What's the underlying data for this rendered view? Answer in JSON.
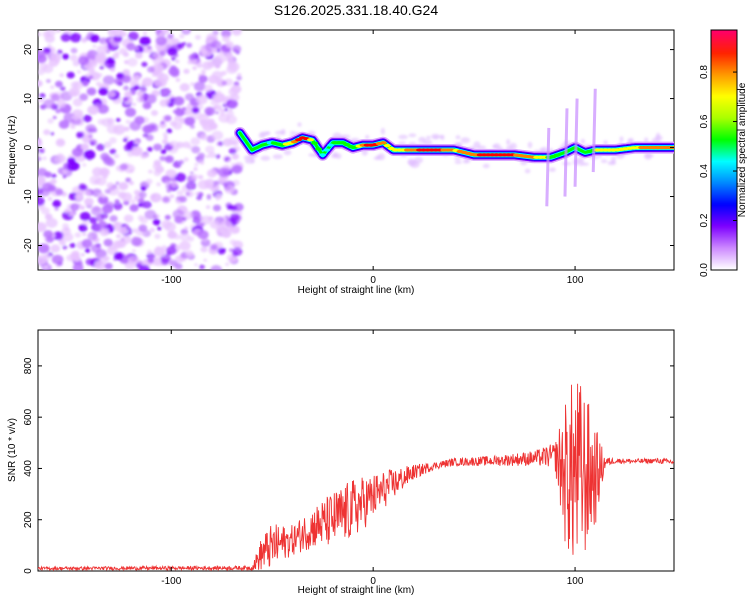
{
  "title": "S126.2025.331.18.40.G24",
  "chart_data": [
    {
      "type": "heatmap",
      "name": "spectrogram",
      "xlabel": "Height of straight line (km)",
      "ylabel": "Frequency (Hz)",
      "xlim": [
        -166,
        149
      ],
      "ylim": [
        -25,
        24
      ],
      "xticks": [
        -100,
        0,
        100
      ],
      "yticks": [
        -20,
        -10,
        0,
        10,
        20
      ],
      "colorbar": {
        "label": "Normalized spectral amplitude",
        "range": [
          0,
          0.97
        ],
        "ticks": [
          0.0,
          0.2,
          0.4,
          0.6,
          0.8
        ],
        "tick_labels": [
          "0.0",
          "0.2",
          "0.4",
          "0.6",
          "0.8"
        ],
        "colors": [
          "#ffffff",
          "#e4b7ff",
          "#7d00ff",
          "#0000ff",
          "#00ffff",
          "#00ff00",
          "#ffff00",
          "#ff8000",
          "#ff0000",
          "#ff0080"
        ]
      },
      "ridge": {
        "x": [
          -66,
          -60,
          -55,
          -50,
          -45,
          -40,
          -35,
          -30,
          -25,
          -20,
          -15,
          -10,
          -5,
          0,
          5,
          10,
          20,
          30,
          40,
          50,
          60,
          70,
          80,
          88,
          95,
          100,
          105,
          110,
          120,
          130,
          140,
          149
        ],
        "freq": [
          3.0,
          -0.5,
          0.5,
          1.0,
          0.5,
          1.0,
          2.0,
          1.5,
          -1.5,
          1.0,
          1.0,
          0.0,
          0.5,
          0.5,
          1.0,
          -0.5,
          -0.5,
          -0.5,
          -0.5,
          -1.5,
          -1.5,
          -1.5,
          -2.0,
          -2.0,
          -1.0,
          0.0,
          -1.0,
          -0.5,
          -0.5,
          0.0,
          0.0,
          0.0
        ],
        "amplitude": [
          0.4,
          0.35,
          0.4,
          0.5,
          0.55,
          0.8,
          0.9,
          0.55,
          0.45,
          0.5,
          0.5,
          0.55,
          0.8,
          0.85,
          0.7,
          0.6,
          0.8,
          0.85,
          0.7,
          0.8,
          0.85,
          0.8,
          0.7,
          0.55,
          0.35,
          0.3,
          0.45,
          0.65,
          0.65,
          0.7,
          0.75,
          0.7
        ]
      },
      "noise_region_x": [
        -166,
        -70
      ]
    },
    {
      "type": "line",
      "name": "snr",
      "xlabel": "Height of straight line (km)",
      "ylabel": "SNR (10 * v/v)",
      "xlim": [
        -166,
        149
      ],
      "ylim": [
        0,
        940
      ],
      "xticks": [
        -100,
        0,
        100
      ],
      "yticks": [
        0,
        200,
        400,
        600,
        800
      ],
      "color": "#ee3333",
      "envelope": {
        "x": [
          -166,
          -60,
          -55,
          -50,
          -45,
          -40,
          -30,
          -20,
          -10,
          0,
          10,
          20,
          30,
          40,
          60,
          80,
          90,
          95,
          100,
          105,
          110,
          115,
          120,
          130,
          140,
          149
        ],
        "mean": [
          10,
          12,
          70,
          95,
          110,
          120,
          170,
          200,
          240,
          290,
          340,
          385,
          410,
          425,
          430,
          440,
          450,
          380,
          380,
          380,
          370,
          425,
          430,
          428,
          430,
          425
        ],
        "spread": [
          6,
          8,
          70,
          90,
          70,
          60,
          80,
          110,
          120,
          90,
          60,
          30,
          15,
          15,
          20,
          30,
          50,
          280,
          400,
          330,
          200,
          20,
          10,
          10,
          10,
          12
        ]
      }
    }
  ]
}
